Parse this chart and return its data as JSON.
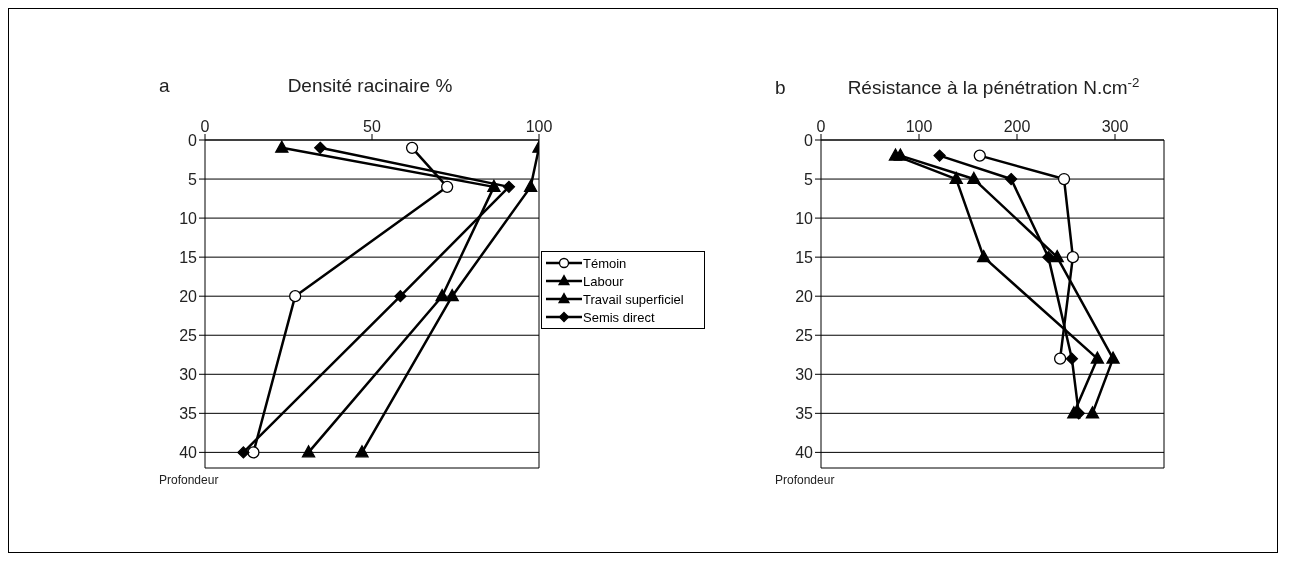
{
  "chart_data": [
    {
      "type": "line",
      "title": "a",
      "xlabel": "Densité racinaire %",
      "ylabel": "Profondeur",
      "xlim": [
        0,
        100
      ],
      "xticks": [
        0,
        50,
        100
      ],
      "ylim": [
        42,
        0
      ],
      "yticks": [
        0,
        5,
        10,
        15,
        20,
        25,
        30,
        35,
        40
      ],
      "grid": "y",
      "legend": "right",
      "line_style": "solid",
      "series": [
        {
          "name": "Témoin",
          "color": "#000000",
          "marker": "circle",
          "x": [
            62,
            72.5,
            27,
            14.5
          ],
          "values": [
            1,
            6,
            20,
            40
          ]
        },
        {
          "name": "Labour",
          "color": "#000000",
          "marker": "triangle",
          "x": [
            23,
            86.5,
            71,
            31
          ],
          "values": [
            1,
            6,
            20,
            40
          ]
        },
        {
          "name": "Travail superficiel",
          "color": "#000000",
          "marker": "triangle",
          "x": [
            100,
            97.5,
            74,
            47
          ],
          "values": [
            1,
            6,
            20,
            40
          ]
        },
        {
          "name": "Semis direct",
          "color": "#000000",
          "marker": "diamond",
          "x": [
            34.5,
            91,
            58.5,
            11.5
          ],
          "values": [
            1,
            6,
            20,
            40
          ]
        }
      ]
    },
    {
      "type": "line",
      "title": "b",
      "xlabel": "Résistance à la pénétration N.cm$^{-2}$",
      "ylabel": "Profondeur",
      "xlim": [
        0,
        350
      ],
      "xticks": [
        0,
        100,
        200,
        300
      ],
      "ylim": [
        42,
        0
      ],
      "yticks": [
        0,
        5,
        10,
        15,
        20,
        25,
        30,
        35,
        40
      ],
      "grid": "y",
      "legend": false,
      "line_style": "solid",
      "series": [
        {
          "color": "#000000",
          "marker": "circle",
          "x": [
            162,
            248,
            257,
            244
          ],
          "values": [
            2,
            5,
            15,
            28
          ]
        },
        {
          "color": "#000000",
          "marker": "triangle",
          "x": [
            76,
            138,
            166,
            282,
            258
          ],
          "values": [
            2,
            5,
            15,
            28,
            35
          ]
        },
        {
          "color": "#000000",
          "marker": "triangle",
          "x": [
            81,
            156,
            241,
            298,
            277
          ],
          "values": [
            2,
            5,
            15,
            28,
            35
          ]
        },
        {
          "color": "#000000",
          "marker": "diamond",
          "x": [
            121,
            194,
            232,
            256,
            263
          ],
          "values": [
            2,
            5,
            15,
            28,
            35
          ]
        }
      ]
    }
  ]
}
